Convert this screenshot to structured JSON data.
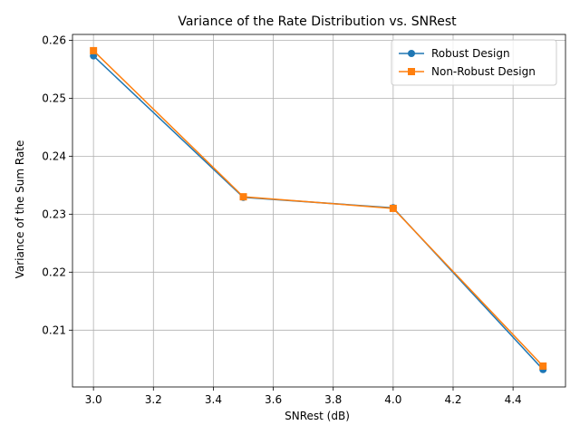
{
  "chart_data": {
    "type": "line",
    "title": "Variance of the Rate Distribution vs. SNRest",
    "xlabel": "SNRest (dB)",
    "ylabel": "Variance of the Sum Rate",
    "xlim": [
      2.93,
      4.575
    ],
    "ylim": [
      0.2002,
      0.261
    ],
    "xticks": [
      3.0,
      3.2,
      3.4,
      3.6,
      3.8,
      4.0,
      4.2,
      4.4
    ],
    "xtick_labels": [
      "3.0",
      "3.2",
      "3.4",
      "3.6",
      "3.8",
      "4.0",
      "4.2",
      "4.4"
    ],
    "yticks": [
      0.21,
      0.22,
      0.23,
      0.24,
      0.25,
      0.26
    ],
    "ytick_labels": [
      "0.21",
      "0.22",
      "0.23",
      "0.24",
      "0.25",
      "0.26"
    ],
    "grid": true,
    "legend_position": "top-right",
    "x": [
      3.0,
      3.5,
      4.0,
      4.5
    ],
    "series": [
      {
        "name": "Robust Design",
        "values": [
          0.2573,
          0.2329,
          0.2311,
          0.2032
        ],
        "color": "#1f77b4",
        "marker": "circle"
      },
      {
        "name": "Non-Robust Design",
        "values": [
          0.2582,
          0.233,
          0.231,
          0.2038
        ],
        "color": "#ff7f0e",
        "marker": "square"
      }
    ]
  }
}
